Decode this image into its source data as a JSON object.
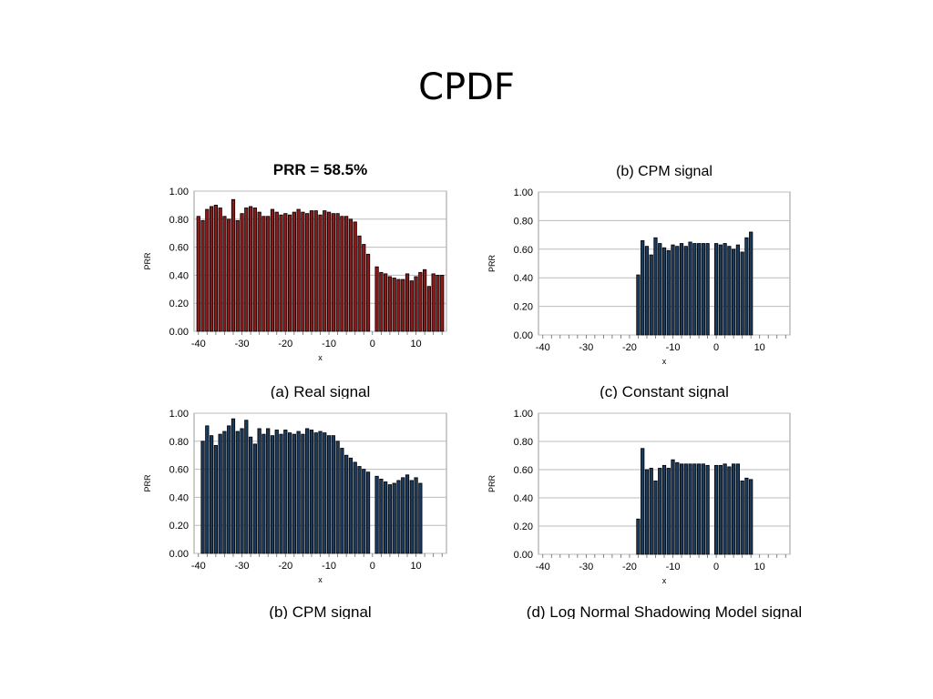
{
  "slide": {
    "title": "CPDF"
  },
  "chart_data": [
    {
      "type": "bar",
      "title": "PRR = 58.5%",
      "caption": "(a) Real signal",
      "xlabel": "x",
      "ylabel": "PRR",
      "color": "#8b1a1a",
      "xlim": [
        -41,
        17
      ],
      "ylim": [
        0,
        1
      ],
      "xticks": [
        -40,
        -30,
        -20,
        -10,
        0,
        10
      ],
      "yticks": [
        0,
        0.2,
        0.4,
        0.6,
        0.8,
        1.0
      ],
      "ytick_labels": [
        "0.00",
        "0.20",
        "0.40",
        "0.60",
        "0.80",
        "1.00"
      ],
      "grid": true,
      "x": [
        -40,
        -39,
        -38,
        -37,
        -36,
        -35,
        -34,
        -33,
        -32,
        -31,
        -30,
        -29,
        -28,
        -27,
        -26,
        -25,
        -24,
        -23,
        -22,
        -21,
        -20,
        -19,
        -18,
        -17,
        -16,
        -15,
        -14,
        -13,
        -12,
        -11,
        -10,
        -9,
        -8,
        -7,
        -6,
        -5,
        -4,
        -3,
        -2,
        -1,
        1,
        2,
        3,
        4,
        5,
        6,
        7,
        8,
        9,
        10,
        11,
        12,
        13,
        14,
        15,
        16
      ],
      "values": [
        0.82,
        0.79,
        0.87,
        0.89,
        0.9,
        0.88,
        0.82,
        0.8,
        0.94,
        0.79,
        0.84,
        0.88,
        0.89,
        0.88,
        0.85,
        0.82,
        0.82,
        0.87,
        0.85,
        0.83,
        0.84,
        0.83,
        0.85,
        0.87,
        0.85,
        0.84,
        0.86,
        0.86,
        0.83,
        0.86,
        0.85,
        0.84,
        0.84,
        0.82,
        0.82,
        0.8,
        0.78,
        0.68,
        0.62,
        0.55,
        0.46,
        0.42,
        0.41,
        0.39,
        0.38,
        0.37,
        0.37,
        0.41,
        0.36,
        0.39,
        0.42,
        0.44,
        0.32,
        0.41,
        0.4,
        0.4
      ]
    },
    {
      "type": "bar",
      "title": "(b) CPM signal",
      "caption": "(c) Constant signal",
      "xlabel": "x",
      "ylabel": "PRR",
      "color": "#1a3a5e",
      "xlim": [
        -41,
        17
      ],
      "ylim": [
        0,
        1
      ],
      "xticks": [
        -40,
        -30,
        -20,
        -10,
        0,
        10
      ],
      "yticks": [
        0,
        0.2,
        0.4,
        0.6,
        0.8,
        1.0
      ],
      "ytick_labels": [
        "0.00",
        "0.20",
        "0.40",
        "0.60",
        "0.80",
        "1.00"
      ],
      "grid": true,
      "x": [
        -18,
        -17,
        -16,
        -15,
        -14,
        -13,
        -12,
        -11,
        -10,
        -9,
        -8,
        -7,
        -6,
        -5,
        -4,
        -3,
        -2,
        0,
        1,
        2,
        3,
        4,
        5,
        6,
        7,
        8
      ],
      "values": [
        0.42,
        0.66,
        0.62,
        0.56,
        0.68,
        0.64,
        0.61,
        0.59,
        0.63,
        0.62,
        0.64,
        0.62,
        0.65,
        0.64,
        0.64,
        0.64,
        0.64,
        0.64,
        0.63,
        0.64,
        0.62,
        0.6,
        0.63,
        0.58,
        0.68,
        0.72
      ]
    },
    {
      "type": "bar",
      "title": "",
      "caption": "(b) CPM signal",
      "xlabel": "x",
      "ylabel": "PRR",
      "color": "#1a3a5e",
      "xlim": [
        -41,
        17
      ],
      "ylim": [
        0,
        1
      ],
      "xticks": [
        -40,
        -30,
        -20,
        -10,
        0,
        10
      ],
      "yticks": [
        0,
        0.2,
        0.4,
        0.6,
        0.8,
        1.0
      ],
      "ytick_labels": [
        "0.00",
        "0.20",
        "0.40",
        "0.60",
        "0.80",
        "1.00"
      ],
      "grid": true,
      "x": [
        -39,
        -38,
        -37,
        -36,
        -35,
        -34,
        -33,
        -32,
        -31,
        -30,
        -29,
        -28,
        -27,
        -26,
        -25,
        -24,
        -23,
        -22,
        -21,
        -20,
        -19,
        -18,
        -17,
        -16,
        -15,
        -14,
        -13,
        -12,
        -11,
        -10,
        -9,
        -8,
        -7,
        -6,
        -5,
        -4,
        -3,
        -2,
        -1,
        1,
        2,
        3,
        4,
        5,
        6,
        7,
        8,
        9,
        10,
        11
      ],
      "values": [
        0.8,
        0.91,
        0.84,
        0.77,
        0.85,
        0.87,
        0.91,
        0.96,
        0.87,
        0.89,
        0.95,
        0.83,
        0.78,
        0.89,
        0.85,
        0.89,
        0.84,
        0.88,
        0.85,
        0.88,
        0.86,
        0.85,
        0.87,
        0.85,
        0.89,
        0.88,
        0.86,
        0.87,
        0.86,
        0.84,
        0.84,
        0.8,
        0.75,
        0.7,
        0.68,
        0.65,
        0.62,
        0.6,
        0.58,
        0.55,
        0.53,
        0.51,
        0.49,
        0.5,
        0.52,
        0.54,
        0.56,
        0.52,
        0.54,
        0.5
      ]
    },
    {
      "type": "bar",
      "title": "",
      "caption": "(d) Log Normal Shadowing Model signal",
      "xlabel": "x",
      "ylabel": "PRR",
      "color": "#1a3a5e",
      "xlim": [
        -41,
        17
      ],
      "ylim": [
        0,
        1
      ],
      "xticks": [
        -40,
        -30,
        -20,
        -10,
        0,
        10
      ],
      "yticks": [
        0,
        0.2,
        0.4,
        0.6,
        0.8,
        1.0
      ],
      "ytick_labels": [
        "0.00",
        "0.20",
        "0.40",
        "0.60",
        "0.80",
        "1.00"
      ],
      "grid": true,
      "x": [
        -18,
        -17,
        -16,
        -15,
        -14,
        -13,
        -12,
        -11,
        -10,
        -9,
        -8,
        -7,
        -6,
        -5,
        -4,
        -3,
        -2,
        0,
        1,
        2,
        3,
        4,
        5,
        6,
        7,
        8
      ],
      "values": [
        0.25,
        0.75,
        0.6,
        0.61,
        0.52,
        0.61,
        0.63,
        0.61,
        0.67,
        0.65,
        0.64,
        0.64,
        0.64,
        0.64,
        0.64,
        0.64,
        0.63,
        0.63,
        0.63,
        0.64,
        0.62,
        0.64,
        0.64,
        0.52,
        0.54,
        0.53
      ]
    }
  ]
}
